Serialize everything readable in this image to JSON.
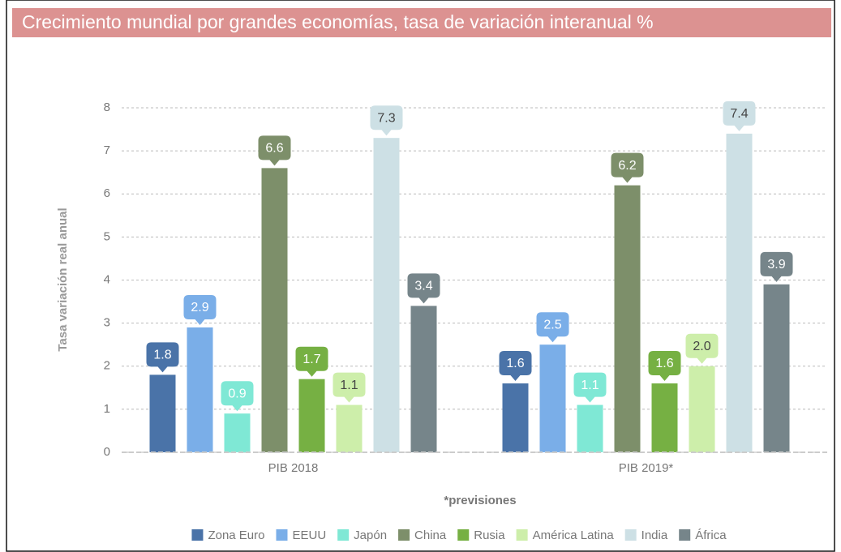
{
  "chart_data": {
    "type": "bar",
    "title": "Crecimiento mundial por grandes economías, tasa de variación interanual %",
    "y_label": "Tasa variación real anual",
    "x_label": "*previsiones",
    "categories": [
      "PIB 2018",
      "PIB 2019*"
    ],
    "series": [
      {
        "name": "Zona Euro",
        "color": "#4a73a8",
        "values": [
          1.8,
          1.6
        ],
        "value_labels": [
          "1.8",
          "1.6"
        ]
      },
      {
        "name": "EEUU",
        "color": "#7aaee8",
        "values": [
          2.9,
          2.5
        ],
        "value_labels": [
          "2.9",
          "2.5"
        ]
      },
      {
        "name": "Japón",
        "color": "#7fe8d5",
        "values": [
          0.9,
          1.1
        ],
        "value_labels": [
          "0.9",
          "1.1"
        ]
      },
      {
        "name": "China",
        "color": "#7d8f6a",
        "values": [
          6.6,
          6.2
        ],
        "value_labels": [
          "6.6",
          "6.2"
        ]
      },
      {
        "name": "Rusia",
        "color": "#76b043",
        "values": [
          1.7,
          1.6
        ],
        "value_labels": [
          "1.7",
          "1.6"
        ]
      },
      {
        "name": "América Latina",
        "color": "#cdeeaa",
        "values": [
          1.1,
          2.0
        ],
        "value_labels": [
          "1.1",
          "2.0"
        ]
      },
      {
        "name": "India",
        "color": "#cde0e5",
        "values": [
          7.3,
          7.4
        ],
        "value_labels": [
          "7.3",
          "7.4"
        ]
      },
      {
        "name": "África",
        "color": "#76858a",
        "values": [
          3.4,
          3.9
        ],
        "value_labels": [
          "3.4",
          "3.9"
        ]
      }
    ],
    "ylim": [
      0,
      8
    ],
    "yticks": [
      0,
      1,
      2,
      3,
      4,
      5,
      6,
      7,
      8
    ],
    "grid": true,
    "legend": "bottom"
  }
}
